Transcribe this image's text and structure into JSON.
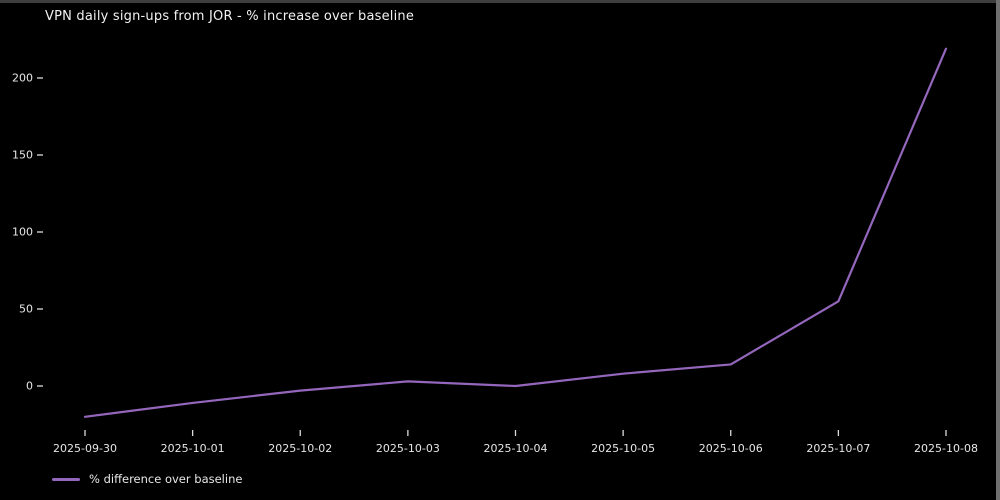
{
  "window": {
    "title": "VPN daily sign-ups from JOR - % increase over baseline"
  },
  "chart_data": {
    "type": "line",
    "title": "VPN daily sign-ups from JOR - % increase over baseline",
    "categories": [
      "2025-09-30",
      "2025-10-01",
      "2025-10-02",
      "2025-10-03",
      "2025-10-04",
      "2025-10-05",
      "2025-10-06",
      "2025-10-07",
      "2025-10-08"
    ],
    "series": [
      {
        "name": "% difference over baseline",
        "values": [
          -20,
          -11,
          -3,
          3,
          0,
          8,
          14,
          55,
          219
        ]
      }
    ],
    "xlabel": "",
    "ylabel": "",
    "y_ticks": [
      0,
      50,
      100,
      150,
      200
    ],
    "ylim": [
      -25,
      230
    ],
    "grid": false,
    "legend_position": "lower-left",
    "colors": {
      "line": "#9467bd",
      "background": "#000000",
      "text": "#e6e6e6",
      "tick": "#dcdcdc"
    }
  }
}
